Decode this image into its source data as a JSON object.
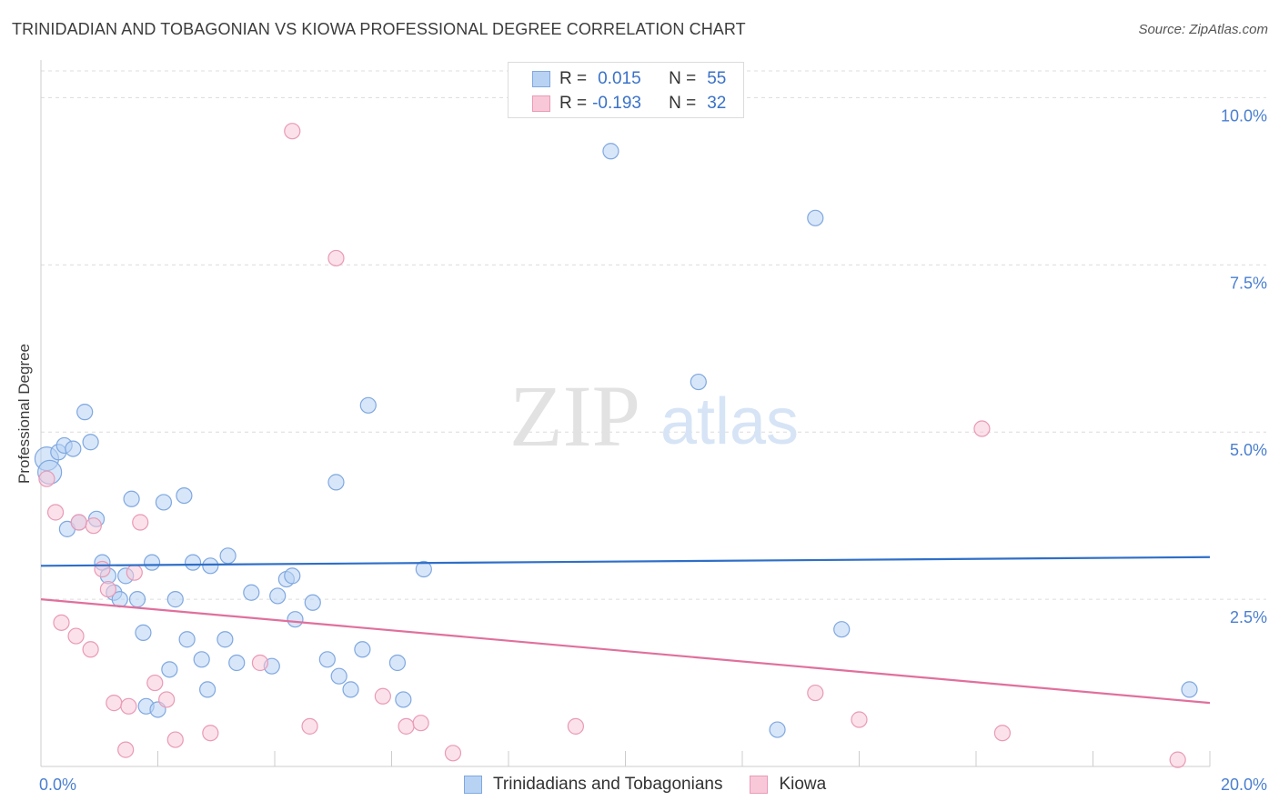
{
  "header": {
    "title": "TRINIDADIAN AND TOBAGONIAN VS KIOWA PROFESSIONAL DEGREE CORRELATION CHART",
    "source": "Source: ZipAtlas.com"
  },
  "watermark": {
    "zip": "ZIP",
    "atlas": "atlas"
  },
  "colors": {
    "blue_fill": "#b8d2f4",
    "blue_stroke": "#7fa8e0",
    "blue_line": "#2f6fc8",
    "pink_fill": "#f8c8d8",
    "pink_stroke": "#e99ab6",
    "pink_line": "#e0709c",
    "grid": "#dcdcdc",
    "axis": "#cccccc"
  },
  "legend": {
    "rows": [
      {
        "r_label": "R =",
        "r_value": "0.015",
        "n_label": "N =",
        "n_value": "55"
      },
      {
        "r_label": "R =",
        "r_value": "-0.193",
        "n_label": "N =",
        "n_value": "32"
      }
    ]
  },
  "chart_data": {
    "type": "scatter",
    "title": "TRINIDADIAN AND TOBAGONIAN VS KIOWA PROFESSIONAL DEGREE CORRELATION CHART",
    "xlabel": "",
    "ylabel": "Professional Degree",
    "xlim": [
      0,
      20
    ],
    "ylim": [
      0,
      10.4
    ],
    "x_tick_labels": [
      "0.0%",
      "20.0%"
    ],
    "y_ticks": [
      2.5,
      5.0,
      7.5,
      10.0
    ],
    "y_tick_labels": [
      "2.5%",
      "5.0%",
      "7.5%",
      "10.0%"
    ],
    "grid": true,
    "series": [
      {
        "name": "Trinidadians and Tobagonians",
        "color": "#b8d2f4",
        "trend": [
          [
            0,
            3.0
          ],
          [
            20,
            3.13
          ]
        ],
        "points": [
          [
            0.1,
            4.6
          ],
          [
            0.15,
            4.4
          ],
          [
            0.3,
            4.7
          ],
          [
            0.4,
            4.8
          ],
          [
            0.55,
            4.75
          ],
          [
            0.75,
            5.3
          ],
          [
            0.85,
            4.85
          ],
          [
            0.45,
            3.55
          ],
          [
            0.65,
            3.65
          ],
          [
            0.95,
            3.7
          ],
          [
            1.55,
            4.0
          ],
          [
            2.1,
            3.95
          ],
          [
            2.45,
            4.05
          ],
          [
            1.05,
            3.05
          ],
          [
            1.15,
            2.85
          ],
          [
            1.25,
            2.6
          ],
          [
            1.35,
            2.5
          ],
          [
            1.45,
            2.85
          ],
          [
            1.65,
            2.5
          ],
          [
            1.9,
            3.05
          ],
          [
            2.3,
            2.5
          ],
          [
            2.6,
            3.05
          ],
          [
            2.9,
            3.0
          ],
          [
            3.2,
            3.15
          ],
          [
            1.75,
            2.0
          ],
          [
            2.5,
            1.9
          ],
          [
            2.75,
            1.6
          ],
          [
            2.85,
            1.15
          ],
          [
            3.15,
            1.9
          ],
          [
            3.35,
            1.55
          ],
          [
            2.2,
            1.45
          ],
          [
            1.8,
            0.9
          ],
          [
            2.0,
            0.85
          ],
          [
            3.6,
            2.6
          ],
          [
            3.95,
            1.5
          ],
          [
            4.05,
            2.55
          ],
          [
            4.2,
            2.8
          ],
          [
            4.3,
            2.85
          ],
          [
            4.35,
            2.2
          ],
          [
            4.65,
            2.45
          ],
          [
            4.9,
            1.6
          ],
          [
            5.1,
            1.35
          ],
          [
            5.3,
            1.15
          ],
          [
            5.5,
            1.75
          ],
          [
            6.1,
            1.55
          ],
          [
            6.2,
            1.0
          ],
          [
            6.55,
            2.95
          ],
          [
            5.05,
            4.25
          ],
          [
            5.6,
            5.4
          ],
          [
            9.75,
            9.2
          ],
          [
            13.25,
            8.2
          ],
          [
            11.25,
            5.75
          ],
          [
            12.6,
            0.55
          ],
          [
            13.7,
            2.05
          ],
          [
            19.65,
            1.15
          ]
        ]
      },
      {
        "name": "Kiowa",
        "color": "#f8c8d8",
        "trend": [
          [
            0,
            2.5
          ],
          [
            20,
            0.95
          ]
        ],
        "points": [
          [
            0.1,
            4.3
          ],
          [
            0.25,
            3.8
          ],
          [
            0.35,
            2.15
          ],
          [
            0.65,
            3.65
          ],
          [
            0.6,
            1.95
          ],
          [
            0.85,
            1.75
          ],
          [
            0.9,
            3.6
          ],
          [
            1.05,
            2.95
          ],
          [
            1.15,
            2.65
          ],
          [
            1.25,
            0.95
          ],
          [
            1.45,
            0.25
          ],
          [
            1.5,
            0.9
          ],
          [
            1.6,
            2.9
          ],
          [
            1.7,
            3.65
          ],
          [
            1.95,
            1.25
          ],
          [
            2.15,
            1.0
          ],
          [
            2.3,
            0.4
          ],
          [
            2.9,
            0.5
          ],
          [
            3.75,
            1.55
          ],
          [
            4.3,
            9.5
          ],
          [
            4.6,
            0.6
          ],
          [
            5.05,
            7.6
          ],
          [
            5.85,
            1.05
          ],
          [
            6.25,
            0.6
          ],
          [
            6.5,
            0.65
          ],
          [
            7.05,
            0.2
          ],
          [
            9.15,
            0.6
          ],
          [
            13.25,
            1.1
          ],
          [
            14.0,
            0.7
          ],
          [
            16.1,
            5.05
          ],
          [
            16.45,
            0.5
          ],
          [
            19.45,
            0.1
          ]
        ]
      }
    ]
  }
}
